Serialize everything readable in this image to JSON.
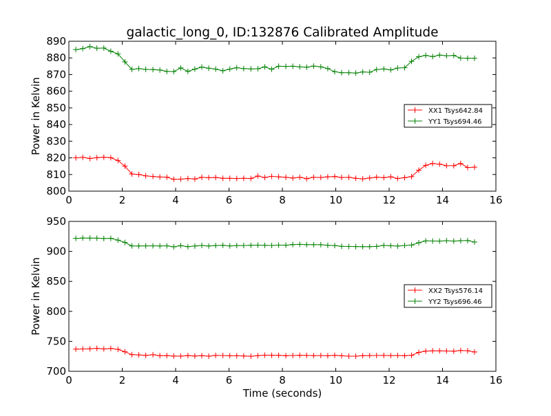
{
  "chart_data": [
    {
      "type": "line",
      "title": "galactic_long_0, ID:132876 Calibrated Amplitude",
      "xlabel": "",
      "ylabel": "Power in Kelvin",
      "xlim": [
        0,
        16
      ],
      "ylim": [
        800,
        890
      ],
      "xticks": [
        0,
        2,
        4,
        6,
        8,
        10,
        12,
        14,
        16
      ],
      "yticks": [
        800,
        810,
        820,
        830,
        840,
        850,
        860,
        870,
        880,
        890
      ],
      "legend_position": "center-right",
      "x": [
        0.26,
        0.52,
        0.79,
        1.05,
        1.31,
        1.57,
        1.84,
        2.1,
        2.36,
        2.62,
        2.88,
        3.15,
        3.41,
        3.67,
        3.93,
        4.19,
        4.46,
        4.72,
        4.98,
        5.24,
        5.5,
        5.77,
        6.03,
        6.29,
        6.55,
        6.82,
        7.08,
        7.34,
        7.6,
        7.86,
        8.13,
        8.39,
        8.65,
        8.91,
        9.17,
        9.44,
        9.7,
        9.96,
        10.22,
        10.49,
        10.75,
        11.01,
        11.27,
        11.53,
        11.8,
        12.06,
        12.32,
        12.58,
        12.84,
        13.11,
        13.37,
        13.63,
        13.89,
        14.15,
        14.42,
        14.68,
        14.94,
        15.2
      ],
      "series": [
        {
          "name": "XX1 Tsys642.84",
          "color": "#ff0000",
          "values": [
            820,
            820.3,
            819.6,
            820.1,
            820.4,
            820.1,
            818.4,
            815,
            810.3,
            810,
            809.2,
            808.8,
            808.5,
            808.4,
            807.1,
            807.2,
            807.6,
            807.3,
            808.3,
            808.1,
            808.2,
            807.7,
            807.7,
            807.6,
            807.7,
            807.6,
            809.1,
            808.2,
            808.9,
            808.6,
            808.3,
            807.9,
            808.3,
            807.5,
            808.3,
            808.2,
            808.6,
            808.8,
            808.2,
            808.3,
            807.7,
            807.4,
            807.9,
            808.4,
            808.1,
            808.6,
            807.6,
            808.1,
            808.7,
            812.6,
            815.5,
            816.6,
            816.2,
            815.3,
            815.3,
            816.6,
            814.2,
            814.4
          ]
        },
        {
          "name": "YY1 Tsys694.46",
          "color": "#008000",
          "values": [
            885,
            885.6,
            886.8,
            885.8,
            885.9,
            884,
            882.4,
            877.6,
            873.1,
            873.6,
            873.1,
            873,
            872.7,
            871.9,
            871.8,
            874,
            871.9,
            873.3,
            874.5,
            873.8,
            873.3,
            872.3,
            873.3,
            874.1,
            873.6,
            873.4,
            873.5,
            874.6,
            873.2,
            875,
            874.9,
            875,
            874.6,
            874.4,
            875.1,
            874.6,
            873.6,
            871.7,
            871.1,
            871.1,
            870.9,
            871.6,
            871.4,
            873,
            873.4,
            872.8,
            873.9,
            874.1,
            877.9,
            880.7,
            881.5,
            880.8,
            881.7,
            881.3,
            881.5,
            879.9,
            879.8,
            879.8
          ]
        }
      ]
    },
    {
      "type": "line",
      "title": "",
      "xlabel": "Time (seconds)",
      "ylabel": "Power in Kelvin",
      "xlim": [
        0,
        16
      ],
      "ylim": [
        700,
        950
      ],
      "xticks": [
        0,
        2,
        4,
        6,
        8,
        10,
        12,
        14,
        16
      ],
      "yticks": [
        700,
        750,
        800,
        850,
        900,
        950
      ],
      "legend_position": "center-right",
      "x": [
        0.26,
        0.52,
        0.79,
        1.05,
        1.31,
        1.57,
        1.84,
        2.1,
        2.36,
        2.62,
        2.88,
        3.15,
        3.41,
        3.67,
        3.93,
        4.19,
        4.46,
        4.72,
        4.98,
        5.24,
        5.5,
        5.77,
        6.03,
        6.29,
        6.55,
        6.82,
        7.08,
        7.34,
        7.6,
        7.86,
        8.13,
        8.39,
        8.65,
        8.91,
        9.17,
        9.44,
        9.7,
        9.96,
        10.22,
        10.49,
        10.75,
        11.01,
        11.27,
        11.53,
        11.8,
        12.06,
        12.32,
        12.58,
        12.84,
        13.11,
        13.37,
        13.63,
        13.89,
        14.15,
        14.42,
        14.68,
        14.94,
        15.2
      ],
      "series": [
        {
          "name": "XX2 Tsys576.14",
          "color": "#ff0000",
          "values": [
            737,
            737.3,
            737.5,
            738.3,
            737.3,
            738.2,
            736.6,
            732.6,
            727.8,
            727.4,
            726.5,
            727.6,
            726.1,
            726.3,
            725.4,
            725.3,
            726.2,
            725.5,
            726.1,
            725.2,
            726.5,
            726.4,
            725.9,
            725.9,
            725.6,
            725.1,
            726.1,
            726.9,
            726.7,
            726.6,
            726,
            726.4,
            726.7,
            726.5,
            726.2,
            726.4,
            725.9,
            726.6,
            725.9,
            725.2,
            725.2,
            726.1,
            726.3,
            726.4,
            726.5,
            726.3,
            726.4,
            726,
            726.6,
            731.5,
            733.7,
            734.2,
            734.1,
            733.9,
            733.5,
            734.7,
            734.3,
            732.2
          ]
        },
        {
          "name": "YY2 Tsys696.46",
          "color": "#008000",
          "values": [
            921.7,
            922.3,
            922.2,
            922,
            921.5,
            921.8,
            918.8,
            914.9,
            909.1,
            909,
            909.2,
            909.3,
            909,
            909.3,
            907.6,
            909.6,
            907.8,
            908.9,
            909.9,
            909,
            909.7,
            910.1,
            909.1,
            909.7,
            909.8,
            910.1,
            910.4,
            910.1,
            909.9,
            910.5,
            910.3,
            911.4,
            911.7,
            911.3,
            911.2,
            911.1,
            910.2,
            909.7,
            908.4,
            908.2,
            908,
            907.8,
            907.8,
            908.3,
            910,
            909.4,
            908.8,
            909.9,
            910.6,
            914.4,
            917.5,
            917.3,
            917.2,
            917.9,
            917.2,
            917.8,
            918.1,
            915.6
          ]
        }
      ]
    }
  ]
}
